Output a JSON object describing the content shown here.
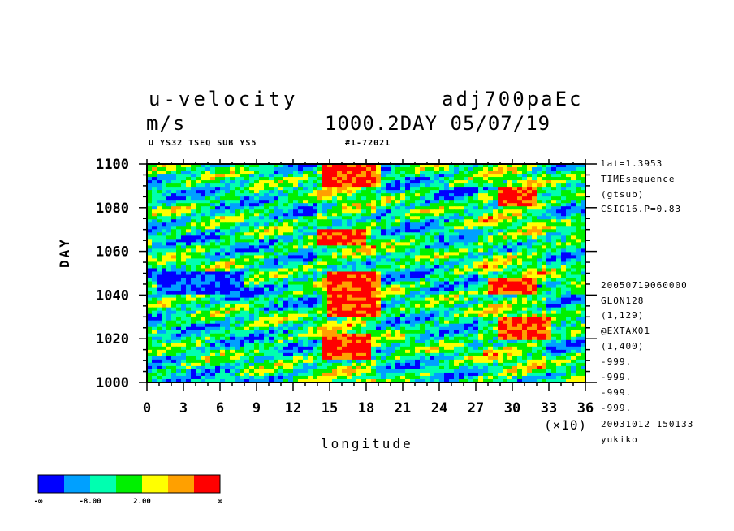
{
  "header": {
    "title_left_1": "u-velocity",
    "title_left_2": "m/s",
    "title_right_1": "adj700paEc",
    "title_right_2": "1000.2DAY 05/07/19",
    "subtitle_left": "U YS32 TSEQ SUB YS5",
    "subtitle_right": "#1-72021"
  },
  "side_info_top": [
    "lat=1.3953",
    "TIMEsequence",
    "(gtsub)",
    "CSIG16.P=0.83"
  ],
  "side_info_bottom": [
    "20050719060000",
    "GLON128",
    "(1,129)",
    "@EXTAX01",
    "(1,400)",
    "-999.",
    "-999.",
    "-999.",
    "-999.",
    "20031012 150133",
    "yukiko"
  ],
  "chart_data": {
    "type": "heatmap",
    "xlabel": "longitude",
    "ylabel": "DAY",
    "x_scale_note": "(×10)",
    "xlim": [
      0,
      36
    ],
    "ylim": [
      1000,
      1100
    ],
    "x_ticks": [
      "0",
      "3",
      "6",
      "9",
      "12",
      "15",
      "18",
      "21",
      "24",
      "27",
      "30",
      "33",
      "36"
    ],
    "y_ticks": [
      "1000",
      "1020",
      "1040",
      "1060",
      "1080",
      "1100"
    ],
    "colorbar": {
      "colors": [
        "#0000ff",
        "#00a0ff",
        "#00ffb0",
        "#00f000",
        "#ffff00",
        "#ffa000",
        "#ff0000"
      ],
      "tick_labels": [
        "-∞",
        "-8.00",
        "2.00",
        "∞"
      ]
    },
    "bands": [
      {
        "x": [
          14.5,
          19
        ],
        "y": [
          1090,
          1100
        ],
        "level": 6
      },
      {
        "x": [
          14,
          18
        ],
        "y": [
          1062,
          1070
        ],
        "level": 6
      },
      {
        "x": [
          15,
          19
        ],
        "y": [
          1030,
          1050
        ],
        "level": 6
      },
      {
        "x": [
          14.5,
          18.5
        ],
        "y": [
          1010,
          1022
        ],
        "level": 6
      },
      {
        "x": [
          28,
          32
        ],
        "y": [
          1040,
          1048
        ],
        "level": 6
      },
      {
        "x": [
          29,
          33
        ],
        "y": [
          1020,
          1030
        ],
        "level": 6
      },
      {
        "x": [
          29,
          32
        ],
        "y": [
          1080,
          1090
        ],
        "level": 6
      },
      {
        "x": [
          1,
          8
        ],
        "y": [
          1040,
          1050
        ],
        "level": 0
      }
    ]
  }
}
